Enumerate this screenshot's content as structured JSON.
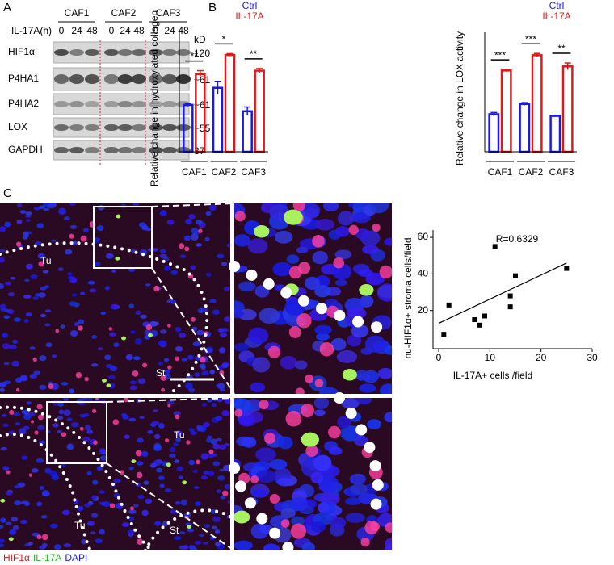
{
  "panels": [
    "A",
    "B",
    "C"
  ],
  "blot": {
    "groups": [
      "CAF1",
      "CAF2",
      "CAF3"
    ],
    "treatment_label": "IL-17A(h)",
    "lanes": [
      "0",
      "24",
      "48",
      "0",
      "24",
      "48",
      "0",
      "24",
      "48"
    ],
    "unit": "kD",
    "rows": [
      {
        "label": "HIF1α",
        "size": "120"
      },
      {
        "label": "P4HA1",
        "size": "~61"
      },
      {
        "label": "P4HA2",
        "size": "~61"
      },
      {
        "label": "LOX",
        "size": "~55"
      },
      {
        "label": "GAPDH",
        "size": "37"
      }
    ]
  },
  "chart_data": [
    {
      "type": "bar",
      "y_label": "Relative change in hydroxylated collagen",
      "categories": [
        "CAF1",
        "CAF2",
        "CAF3"
      ],
      "ylim": [
        0,
        2.8
      ],
      "series": [
        {
          "name": "Ctrl",
          "color": "#1a1adc",
          "values": [
            1.1,
            1.5,
            0.95
          ],
          "errors": [
            0.03,
            0.15,
            0.1
          ]
        },
        {
          "name": "IL-17A",
          "color": "#e01818",
          "values": [
            1.82,
            2.27,
            1.9
          ],
          "errors": [
            0.08,
            0.03,
            0.05
          ]
        }
      ],
      "annotations": [
        "**",
        "*",
        "**"
      ]
    },
    {
      "type": "bar",
      "y_label": "Relative change in LOX activity",
      "categories": [
        "CAF1",
        "CAF2",
        "CAF3"
      ],
      "ylim": [
        0,
        3.5
      ],
      "series": [
        {
          "name": "Ctrl",
          "color": "#1a1adc",
          "values": [
            1.1,
            1.4,
            1.05
          ],
          "errors": [
            0.05,
            0.04,
            0.02
          ]
        },
        {
          "name": "IL-17A",
          "color": "#e01818",
          "values": [
            2.38,
            2.83,
            2.5
          ],
          "errors": [
            0.03,
            0.05,
            0.1
          ]
        }
      ],
      "annotations": [
        "***",
        "***",
        "**"
      ]
    },
    {
      "type": "scatter",
      "title": "R=0.6329",
      "x_label": "IL-17A+ cells /field",
      "y_label": "nu-HIF1α+ stroma cells/field",
      "x": [
        1,
        2,
        7,
        8,
        9,
        11,
        14,
        14,
        15,
        25
      ],
      "values": [
        7,
        23,
        15,
        12,
        17,
        55,
        28,
        22,
        39,
        43
      ],
      "trend": {
        "x": [
          0,
          25
        ],
        "y": [
          13,
          46
        ]
      },
      "xlim": [
        0,
        30
      ],
      "ylim": [
        0,
        64
      ],
      "xticks": [
        0,
        10,
        20,
        30
      ],
      "yticks": [
        20,
        40,
        60
      ],
      "color": "#000000"
    }
  ],
  "micrograph": {
    "labels_top": [
      "Tu",
      "St"
    ],
    "labels_bottom": [
      "Tu",
      "Tu",
      "St"
    ],
    "stains": [
      {
        "name": "HIF1α",
        "color": "#e01818"
      },
      {
        "name": "IL-17A",
        "color": "#2ab82a"
      },
      {
        "name": "DAPI",
        "color": "#1a1adc"
      }
    ]
  }
}
